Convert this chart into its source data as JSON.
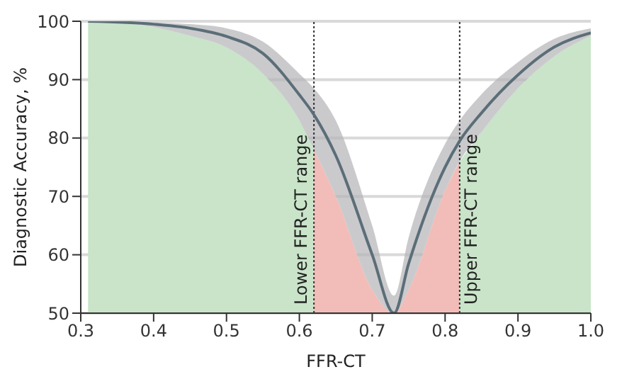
{
  "chart_data": {
    "type": "line",
    "xlabel": "FFR-CT",
    "ylabel": "Diagnostic Accuracy, %",
    "x": [
      0.31,
      0.4,
      0.45,
      0.5,
      0.55,
      0.6,
      0.62,
      0.65,
      0.7,
      0.73,
      0.75,
      0.8,
      0.82,
      0.85,
      0.9,
      0.95,
      1.0
    ],
    "series": [
      {
        "type": "area",
        "color": "#c9e4c9",
        "values": [
          100,
          99,
          97.5,
          95.5,
          91,
          83,
          78,
          null,
          null,
          null,
          null,
          null,
          76,
          81,
          88.5,
          94,
          97.5
        ]
      },
      {
        "type": "area",
        "color": "#f2bdb8",
        "values": [
          null,
          null,
          null,
          null,
          null,
          null,
          78,
          70,
          54,
          50,
          54,
          71,
          76,
          null,
          null,
          null,
          null
        ]
      },
      {
        "color": "#5b6e78",
        "values": [
          100,
          99.5,
          98.8,
          97.4,
          94.5,
          87.4,
          84,
          77,
          60,
          50,
          58.5,
          75,
          79.5,
          84.3,
          90.8,
          95.6,
          98
        ],
        "lower": [
          100,
          99,
          97.5,
          95.5,
          91,
          83,
          78,
          70,
          54,
          50,
          54,
          71,
          76,
          81,
          88.5,
          94,
          97.5
        ],
        "upper": [
          100,
          99.8,
          99.5,
          98.8,
          96.5,
          91,
          88.5,
          83,
          65,
          53,
          63,
          79,
          83,
          87.5,
          93,
          97,
          98.8
        ]
      }
    ],
    "xlim": [
      0.3,
      1.0
    ],
    "xticks": [
      {
        "value": 0.3,
        "label": "0.3"
      },
      {
        "value": 0.4,
        "label": "0.4"
      },
      {
        "value": 0.5,
        "label": "0.5"
      },
      {
        "value": 0.6,
        "label": "0.6"
      },
      {
        "value": 0.7,
        "label": "0.7"
      },
      {
        "value": 0.8,
        "label": "0.8"
      },
      {
        "value": 0.9,
        "label": "0.9"
      },
      {
        "value": 1.0,
        "label": "1.0"
      }
    ],
    "ylim": [
      50,
      100
    ],
    "yticks": [
      50,
      60,
      70,
      80,
      90,
      100
    ],
    "grid": "y",
    "marker": "none",
    "line_style": "solid",
    "ref_lines": [
      {
        "axis": "x",
        "value": 0.62,
        "label": "Lower FFR-CT range",
        "color": "#333333",
        "line_style": "dotted"
      },
      {
        "axis": "x",
        "value": 0.82,
        "label": "Upper FFR-CT range",
        "color": "#333333",
        "line_style": "dotted"
      }
    ]
  }
}
